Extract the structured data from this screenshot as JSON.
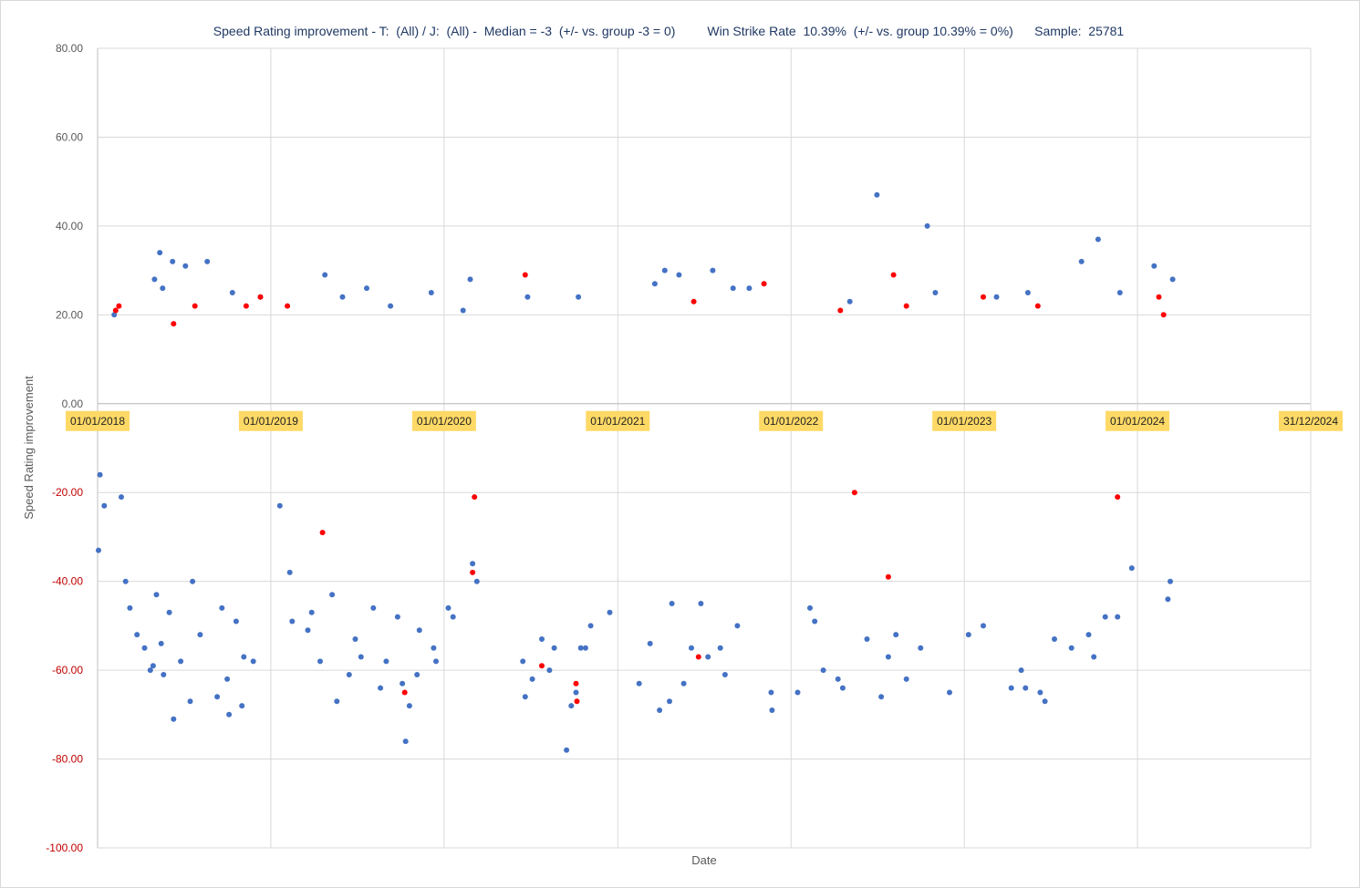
{
  "chart_data": {
    "type": "scatter",
    "title": "Speed Rating improvement - T:  (All) / J:  (All) -  Median = -3  (+/- vs. group -3 = 0)         Win Strike Rate  10.39%  (+/- vs. group 10.39% = 0%)      Sample:  25781",
    "xlabel": "Date",
    "ylabel": "Speed Rating improvement",
    "xlim": [
      "2018-01-01",
      "2024-12-31"
    ],
    "ylim": [
      -100,
      80
    ],
    "y_ticks": [
      "80.00",
      "60.00",
      "40.00",
      "20.00",
      "0.00",
      "-20.00",
      "-40.00",
      "-60.00",
      "-80.00",
      "-100.00"
    ],
    "x_ticks": [
      "01/01/2018",
      "01/01/2019",
      "01/01/2020",
      "01/01/2021",
      "01/01/2022",
      "01/01/2023",
      "01/01/2024",
      "31/12/2024"
    ],
    "grid": true,
    "colors": {
      "non_winner": "#4472c4",
      "winner": "#ff0000",
      "negative_tick": "#c00000",
      "date_label_bg": "#ffd966",
      "gridline": "#d9d9d9",
      "title": "#1f3864"
    },
    "series": [
      {
        "color": "#4472c4",
        "points": [
          [
            "2018-01-03",
            -33
          ],
          [
            "2018-01-06",
            -16
          ],
          [
            "2018-01-15",
            -23
          ],
          [
            "2018-02-05",
            20
          ],
          [
            "2018-02-20",
            -21
          ],
          [
            "2018-03-01",
            -40
          ],
          [
            "2018-03-10",
            -46
          ],
          [
            "2018-03-25",
            -52
          ],
          [
            "2018-04-10",
            -55
          ],
          [
            "2018-04-22",
            -60
          ],
          [
            "2018-04-28",
            -59
          ],
          [
            "2018-05-05",
            -43
          ],
          [
            "2018-05-15",
            -54
          ],
          [
            "2018-05-20",
            -61
          ],
          [
            "2018-05-12",
            34
          ],
          [
            "2018-05-01",
            28
          ],
          [
            "2018-05-18",
            26
          ],
          [
            "2018-06-01",
            -47
          ],
          [
            "2018-06-10",
            -71
          ],
          [
            "2018-06-08",
            32
          ],
          [
            "2018-06-25",
            -58
          ],
          [
            "2018-07-05",
            31
          ],
          [
            "2018-07-15",
            -67
          ],
          [
            "2018-07-20",
            -40
          ],
          [
            "2018-08-05",
            -52
          ],
          [
            "2018-08-20",
            32
          ],
          [
            "2018-09-10",
            -66
          ],
          [
            "2018-09-20",
            -46
          ],
          [
            "2018-10-01",
            -62
          ],
          [
            "2018-10-05",
            -70
          ],
          [
            "2018-10-12",
            25
          ],
          [
            "2018-10-20",
            -49
          ],
          [
            "2018-11-01",
            -68
          ],
          [
            "2018-11-05",
            -57
          ],
          [
            "2018-11-25",
            -58
          ],
          [
            "2018-12-10",
            24
          ],
          [
            "2019-01-20",
            -23
          ],
          [
            "2019-02-10",
            -38
          ],
          [
            "2019-02-15",
            -49
          ],
          [
            "2019-03-20",
            -51
          ],
          [
            "2019-03-28",
            -47
          ],
          [
            "2019-04-15",
            -58
          ],
          [
            "2019-04-25",
            29
          ],
          [
            "2019-05-10",
            -43
          ],
          [
            "2019-05-20",
            -67
          ],
          [
            "2019-06-01",
            24
          ],
          [
            "2019-06-15",
            -61
          ],
          [
            "2019-06-28",
            -53
          ],
          [
            "2019-07-10",
            -57
          ],
          [
            "2019-07-22",
            26
          ],
          [
            "2019-08-05",
            -46
          ],
          [
            "2019-08-20",
            -64
          ],
          [
            "2019-09-01",
            -58
          ],
          [
            "2019-09-10",
            22
          ],
          [
            "2019-09-25",
            -48
          ],
          [
            "2019-10-05",
            -63
          ],
          [
            "2019-10-12",
            -76
          ],
          [
            "2019-10-20",
            -68
          ],
          [
            "2019-11-05",
            -61
          ],
          [
            "2019-11-10",
            -51
          ],
          [
            "2019-12-05",
            25
          ],
          [
            "2019-12-10",
            -55
          ],
          [
            "2019-12-15",
            -58
          ],
          [
            "2020-01-10",
            -46
          ],
          [
            "2020-01-20",
            -48
          ],
          [
            "2020-02-10",
            21
          ],
          [
            "2020-02-25",
            28
          ],
          [
            "2020-03-01",
            -36
          ],
          [
            "2020-03-10",
            -40
          ],
          [
            "2020-06-15",
            -58
          ],
          [
            "2020-06-20",
            -66
          ],
          [
            "2020-06-25",
            24
          ],
          [
            "2020-07-05",
            -62
          ],
          [
            "2020-07-25",
            -53
          ],
          [
            "2020-08-10",
            -60
          ],
          [
            "2020-08-20",
            -55
          ],
          [
            "2020-09-15",
            -78
          ],
          [
            "2020-09-25",
            -68
          ],
          [
            "2020-10-05",
            -65
          ],
          [
            "2020-10-10",
            24
          ],
          [
            "2020-10-15",
            -55
          ],
          [
            "2020-10-25",
            -55
          ],
          [
            "2020-11-05",
            -50
          ],
          [
            "2020-12-15",
            -47
          ],
          [
            "2021-02-15",
            -63
          ],
          [
            "2021-03-10",
            -54
          ],
          [
            "2021-03-20",
            27
          ],
          [
            "2021-03-30",
            -69
          ],
          [
            "2021-04-10",
            30
          ],
          [
            "2021-04-20",
            -67
          ],
          [
            "2021-04-25",
            -45
          ],
          [
            "2021-05-10",
            29
          ],
          [
            "2021-05-20",
            -63
          ],
          [
            "2021-06-05",
            -55
          ],
          [
            "2021-06-25",
            -45
          ],
          [
            "2021-07-10",
            -57
          ],
          [
            "2021-07-20",
            30
          ],
          [
            "2021-08-05",
            -55
          ],
          [
            "2021-08-15",
            -61
          ],
          [
            "2021-09-01",
            26
          ],
          [
            "2021-09-10",
            -50
          ],
          [
            "2021-10-05",
            26
          ],
          [
            "2021-11-20",
            -65
          ],
          [
            "2021-11-22",
            -69
          ],
          [
            "2022-01-15",
            -65
          ],
          [
            "2022-02-10",
            -46
          ],
          [
            "2022-02-20",
            -49
          ],
          [
            "2022-03-10",
            -60
          ],
          [
            "2022-04-10",
            -62
          ],
          [
            "2022-04-20",
            -64
          ],
          [
            "2022-05-05",
            23
          ],
          [
            "2022-06-10",
            -53
          ],
          [
            "2022-07-01",
            47
          ],
          [
            "2022-07-10",
            -66
          ],
          [
            "2022-07-25",
            -57
          ],
          [
            "2022-08-10",
            -52
          ],
          [
            "2022-09-01",
            -62
          ],
          [
            "2022-10-01",
            -55
          ],
          [
            "2022-10-15",
            40
          ],
          [
            "2022-11-01",
            25
          ],
          [
            "2022-12-01",
            -65
          ],
          [
            "2023-01-10",
            -52
          ],
          [
            "2023-02-10",
            -50
          ],
          [
            "2023-03-10",
            24
          ],
          [
            "2023-04-10",
            -64
          ],
          [
            "2023-05-01",
            -60
          ],
          [
            "2023-05-10",
            -64
          ],
          [
            "2023-05-15",
            25
          ],
          [
            "2023-06-10",
            -65
          ],
          [
            "2023-06-20",
            -67
          ],
          [
            "2023-07-10",
            -53
          ],
          [
            "2023-08-15",
            -55
          ],
          [
            "2023-09-05",
            32
          ],
          [
            "2023-09-20",
            -52
          ],
          [
            "2023-10-01",
            -57
          ],
          [
            "2023-10-10",
            37
          ],
          [
            "2023-10-25",
            -48
          ],
          [
            "2023-11-20",
            -48
          ],
          [
            "2023-11-25",
            25
          ],
          [
            "2023-12-20",
            -37
          ],
          [
            "2024-02-05",
            31
          ],
          [
            "2024-03-05",
            -44
          ],
          [
            "2024-03-10",
            -40
          ],
          [
            "2024-03-15",
            28
          ]
        ]
      },
      {
        "color": "#ff0000",
        "points": [
          [
            "2018-02-08",
            21
          ],
          [
            "2018-02-15",
            22
          ],
          [
            "2018-06-10",
            18
          ],
          [
            "2018-07-25",
            22
          ],
          [
            "2018-11-10",
            22
          ],
          [
            "2018-12-10",
            24
          ],
          [
            "2019-02-05",
            22
          ],
          [
            "2019-04-20",
            -29
          ],
          [
            "2019-10-10",
            -65
          ],
          [
            "2020-03-01",
            -38
          ],
          [
            "2020-03-05",
            -21
          ],
          [
            "2020-06-20",
            29
          ],
          [
            "2020-07-25",
            -59
          ],
          [
            "2020-10-05",
            -63
          ],
          [
            "2020-10-07",
            -67
          ],
          [
            "2021-06-20",
            -57
          ],
          [
            "2021-06-10",
            23
          ],
          [
            "2021-11-05",
            27
          ],
          [
            "2022-04-15",
            21
          ],
          [
            "2022-05-15",
            -20
          ],
          [
            "2022-08-05",
            29
          ],
          [
            "2022-09-01",
            22
          ],
          [
            "2022-07-25",
            -39
          ],
          [
            "2023-02-10",
            24
          ],
          [
            "2023-06-05",
            22
          ],
          [
            "2024-02-15",
            24
          ],
          [
            "2024-02-25",
            20
          ],
          [
            "2023-11-20",
            -21
          ]
        ]
      }
    ]
  }
}
